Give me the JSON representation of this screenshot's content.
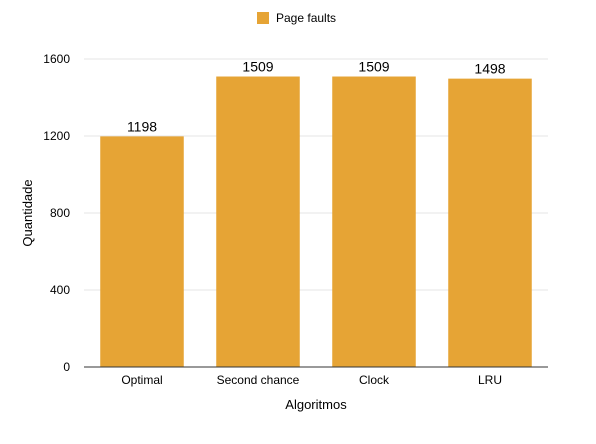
{
  "chart_data": {
    "type": "bar",
    "categories": [
      "Optimal",
      "Second chance",
      "Clock",
      "LRU"
    ],
    "series": [
      {
        "name": "Page faults",
        "values": [
          1198,
          1509,
          1509,
          1498
        ],
        "color": "#e6a435"
      }
    ],
    "data_labels": [
      "1198",
      "1509",
      "1509",
      "1498"
    ],
    "xlabel": "Algoritmos",
    "ylabel": "Quantidade",
    "ylim": [
      0,
      1600
    ],
    "yticks": [
      0,
      400,
      800,
      1200,
      1600
    ],
    "grid": true,
    "legend_position": "top-center"
  }
}
